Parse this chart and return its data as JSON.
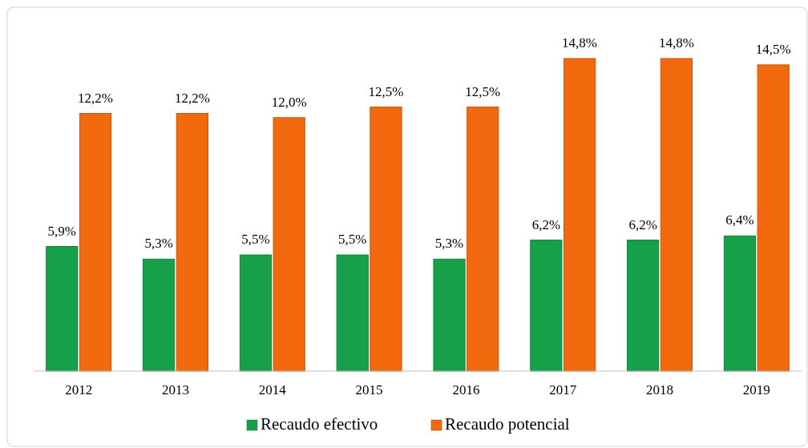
{
  "chart_data": {
    "type": "bar",
    "categories": [
      "2012",
      "2013",
      "2014",
      "2015",
      "2016",
      "2017",
      "2018",
      "2019"
    ],
    "series": [
      {
        "name": "Recaudo efectivo",
        "color": "#16a04a",
        "values": [
          5.9,
          5.3,
          5.5,
          5.5,
          5.3,
          6.2,
          6.2,
          6.4
        ],
        "value_labels": [
          "5,9%",
          "5,3%",
          "5,5%",
          "5,5%",
          "5,3%",
          "6,2%",
          "6,2%",
          "6,4%"
        ]
      },
      {
        "name": "Recaudo potencial",
        "color": "#f36a0e",
        "values": [
          12.2,
          12.2,
          12.0,
          12.5,
          12.5,
          14.8,
          14.8,
          14.5
        ],
        "value_labels": [
          "12,2%",
          "12,2%",
          "12,0%",
          "12,5%",
          "12,5%",
          "14,8%",
          "14,8%",
          "14,5%"
        ]
      }
    ],
    "legend": "bottom"
  }
}
